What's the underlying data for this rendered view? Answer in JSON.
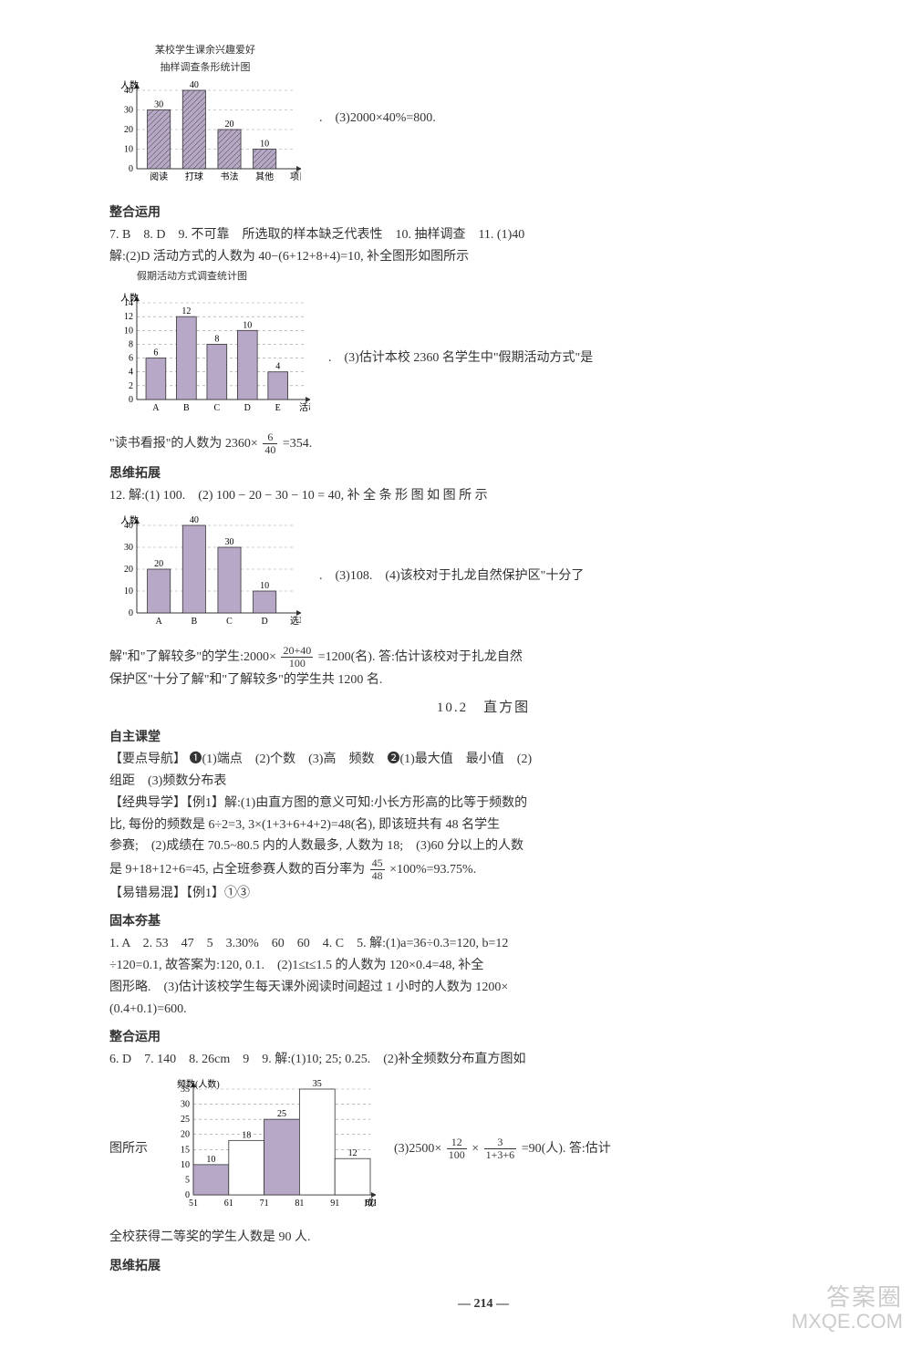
{
  "chart1": {
    "title_line1": "某校学生课余兴趣爱好",
    "title_line2": "抽样调查条形统计图",
    "ylabel": "人数",
    "xlabel": "项目",
    "categories": [
      "阅读",
      "打球",
      "书法",
      "其他"
    ],
    "values": [
      30,
      40,
      20,
      10
    ],
    "ymax": 40,
    "ytick_step": 10,
    "bar_color": "#b8a8c8",
    "hatch": true,
    "axis_color": "#333",
    "grid_dash": "3,3",
    "side_text_a": "(3)2000×40%=800.",
    "side_text_b": ""
  },
  "s_zhenghe1": {
    "head": "整合运用",
    "line1": "7. B　8. D　9. 不可靠　所选取的样本缺乏代表性　10. 抽样调查　11. (1)40",
    "line2": "解:(2)D 活动方式的人数为 40−(6+12+8+4)=10, 补全图形如图所示"
  },
  "chart2": {
    "title": "假期活动方式调查统计图",
    "ylabel": "人数",
    "xlabel": "活动方式",
    "categories": [
      "A",
      "B",
      "C",
      "D",
      "E"
    ],
    "values": [
      6,
      12,
      8,
      10,
      4
    ],
    "ymax": 14,
    "ytick_step": 2,
    "bar_color": "#b8a8c8",
    "side_text": "(3)估计本校 2360 名学生中\"假期活动方式\"是"
  },
  "after_chart2_pre": "\"读书看报\"的人数为 2360×",
  "after_chart2_frac_num": "6",
  "after_chart2_frac_den": "40",
  "after_chart2_post": "=354.",
  "s_siwei1": {
    "head": "思维拓展",
    "line1": "12. 解:(1) 100.　(2) 100 − 20 − 30 − 10 = 40, 补 全 条 形 图 如 图 所 示"
  },
  "chart3": {
    "ylabel": "人数",
    "xlabel": "选项",
    "categories": [
      "A",
      "B",
      "C",
      "D"
    ],
    "values": [
      20,
      40,
      30,
      10
    ],
    "ymax": 40,
    "ytick_step": 10,
    "side_text": "(3)108.　(4)该校对于扎龙自然保护区\"十分了"
  },
  "after_chart3_pre": "解\"和\"了解较多\"的学生:2000×",
  "after_chart3_frac_num": "20+40",
  "after_chart3_frac_den": "100",
  "after_chart3_post": "=1200(名). 答:估计该校对于扎龙自然",
  "after_chart3_line2": "保护区\"十分了解\"和\"了解较多\"的学生共 1200 名.",
  "section_10_2_title": "10.2　直方图",
  "s_zizhu": {
    "head": "自主课堂",
    "line1": "【要点导航】 ❶(1)端点　(2)个数　(3)高　频数　❷(1)最大值　最小值　(2)",
    "line2": "组距　(3)频数分布表",
    "line3": "【经典导学】【例1】解:(1)由直方图的意义可知:小长方形高的比等于频数的",
    "line4": "比, 每份的频数是 6÷2=3, 3×(1+3+6+4+2)=48(名), 即该班共有 48 名学生",
    "line5": "参赛;　(2)成绩在 70.5~80.5 内的人数最多, 人数为 18;　(3)60 分以上的人数",
    "line6_pre": "是 9+18+12+6=45, 占全班参赛人数的百分率为",
    "line6_frac_num": "45",
    "line6_frac_den": "48",
    "line6_post": "×100%=93.75%.",
    "line7": "【易错易混】【例1】①③"
  },
  "s_guben": {
    "head": "固本夯基",
    "line1": "1. A　2. 53　47　5　3.30%　60　60　4. C　5. 解:(1)a=36÷0.3=120, b=12",
    "line2": "÷120=0.1, 故答案为:120, 0.1.　(2)1≤t≤1.5 的人数为 120×0.4=48, 补全",
    "line3": "图形略.　(3)估计该校学生每天课外阅读时间超过 1 小时的人数为 1200×",
    "line4": "(0.4+0.1)=600."
  },
  "s_zhenghe2": {
    "head": "整合运用",
    "line1": "6. D　7. 140　8. 26cm　9　9. 解:(1)10; 25; 0.25.　(2)补全频数分布直方图如"
  },
  "chart4": {
    "ylabel": "频数(人数)",
    "xlabel": "成绩/分",
    "categories": [
      "51",
      "61",
      "71",
      "81",
      "91",
      "101"
    ],
    "values": [
      10,
      18,
      25,
      35,
      12
    ],
    "ymax": 35,
    "ytick_step": 5,
    "highlight_indices": [
      0,
      2
    ],
    "highlight_color": "#b8a8c8",
    "plain_color": "#ffffff",
    "prefix": "图所示",
    "side_pre": "(3)2500×",
    "side_f1_num": "12",
    "side_f1_den": "100",
    "side_mid": "×",
    "side_f2_num": "3",
    "side_f2_den": "1+3+6",
    "side_post": "=90(人). 答:估计"
  },
  "after_chart4": "全校获得二等奖的学生人数是 90 人.",
  "s_siwei2_head": "思维拓展",
  "pagenum": "— 214 —",
  "watermark_top": "答案圈",
  "watermark_bottom": "MXQE.COM"
}
